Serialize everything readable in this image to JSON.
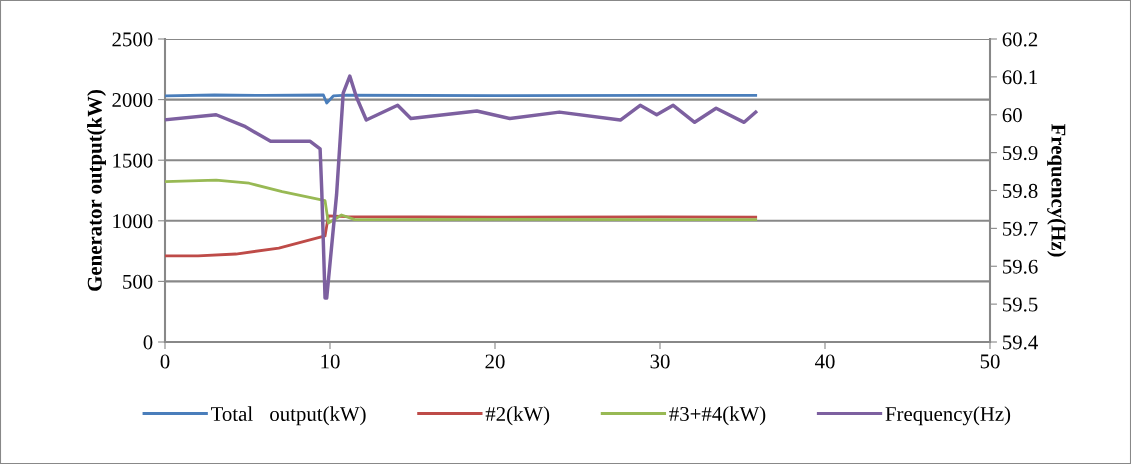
{
  "chart_data": {
    "type": "line",
    "ylabel": "Generator output(kW)",
    "y2label": "Frequency(Hz)",
    "xlim": [
      0,
      50
    ],
    "xticks": [
      0,
      10,
      20,
      30,
      40,
      50
    ],
    "ylim": [
      0,
      2500
    ],
    "yticks": [
      0,
      500,
      1000,
      1500,
      2000,
      2500
    ],
    "y2lim": [
      59.4,
      60.2
    ],
    "y2ticks": [
      59.4,
      59.5,
      59.6,
      59.7,
      59.8,
      59.9,
      60,
      60.1,
      60.2
    ],
    "grid": "y",
    "legend": "bottom",
    "marker": "none",
    "line_style": "solid",
    "series": [
      {
        "name": "Total　output(kW)",
        "color": "#4a7ebb",
        "x": [
          0,
          3,
          6,
          9.6,
          9.8,
          10.2,
          11,
          20,
          30,
          35.8
        ],
        "values": [
          2030,
          2038,
          2035,
          2038,
          1972,
          2030,
          2036,
          2032,
          2035,
          2035
        ]
      },
      {
        "name": "#2(kW)",
        "color": "#be4b48",
        "x": [
          0,
          2,
          4.3,
          6.9,
          9.7,
          9.9,
          11,
          20,
          30,
          35.8
        ],
        "values": [
          710,
          710,
          726,
          775,
          875,
          1040,
          1035,
          1030,
          1032,
          1030
        ]
      },
      {
        "name": "#3+#4(kW)",
        "color": "#98b954",
        "x": [
          0,
          3.1,
          5.1,
          7.1,
          9.7,
          9.9,
          10.7,
          11.5,
          20,
          30,
          35.8
        ],
        "values": [
          1323,
          1336,
          1310,
          1240,
          1166,
          982,
          1048,
          1010,
          1012,
          1010,
          1010
        ]
      },
      {
        "name": "Frequency(Hz)",
        "color": "#7d60a0",
        "axis": "y2",
        "x": [
          0.08,
          3.1,
          4.8,
          6.4,
          8.8,
          9.4,
          9.5,
          9.7,
          9.8,
          10.4,
          10.8,
          11.2,
          11.6,
          12.2,
          14.1,
          14.9,
          18.9,
          20.9,
          23.9,
          27.6,
          28.8,
          29.8,
          30.8,
          32.1,
          33.4,
          35.1,
          35.8
        ],
        "values": [
          59.987,
          60.0,
          59.97,
          59.93,
          59.93,
          59.91,
          59.8,
          59.516,
          59.516,
          59.79,
          60.057,
          60.102,
          60.047,
          59.986,
          60.025,
          59.99,
          60.01,
          59.99,
          60.007,
          59.986,
          60.025,
          60.0,
          60.025,
          59.98,
          60.017,
          59.98,
          60.007
        ]
      }
    ]
  }
}
